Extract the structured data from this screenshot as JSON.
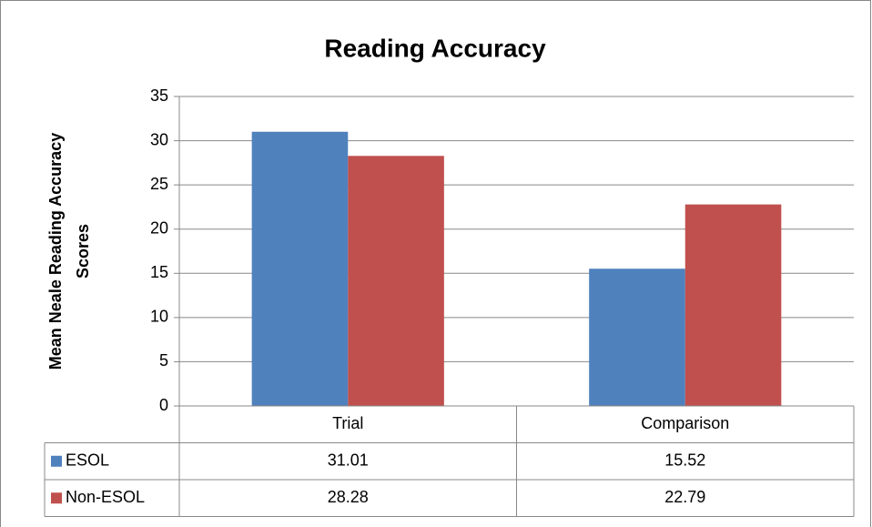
{
  "chart_data": {
    "type": "bar",
    "title": "Reading Accuracy",
    "y_label": [
      "Mean Neale Reading Accuracy",
      "Scores"
    ],
    "categories": [
      "Trial",
      "Comparison"
    ],
    "series": [
      {
        "name": "ESOL",
        "color": "#4f81bd",
        "values": [
          31.01,
          15.52
        ]
      },
      {
        "name": "Non-ESOL",
        "color": "#c0504d",
        "values": [
          28.28,
          22.79
        ]
      }
    ],
    "ylim": [
      0,
      35
    ],
    "yticks": [
      0,
      5,
      10,
      15,
      20,
      25,
      30,
      35
    ],
    "grid": true,
    "data_table": true
  }
}
